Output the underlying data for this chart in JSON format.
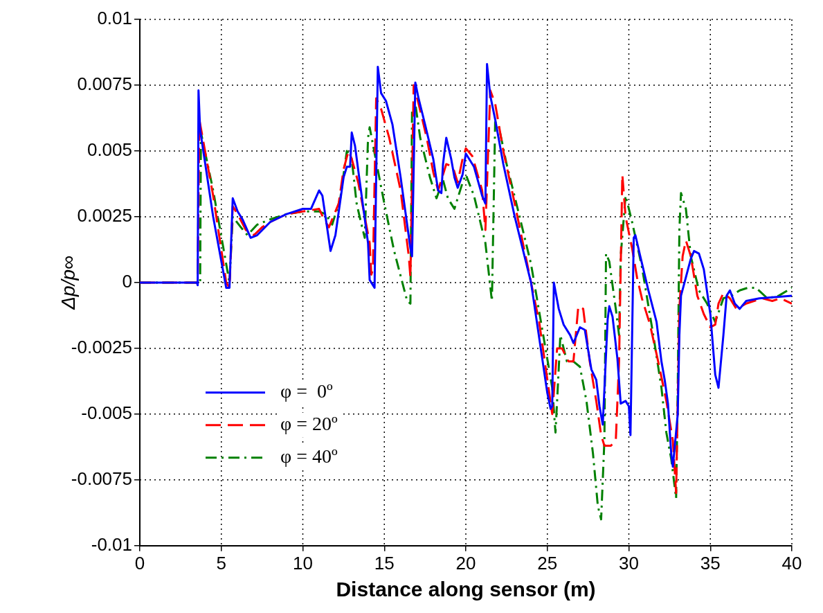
{
  "chart_data": {
    "type": "line",
    "xlabel": "Distance along sensor (m)",
    "ylabel": "Δp/p∞",
    "xlim": [
      0,
      40
    ],
    "xticks": [
      0,
      5,
      10,
      15,
      20,
      25,
      30,
      35,
      40
    ],
    "ylim": [
      -0.01,
      0.01
    ],
    "yticks": [
      -0.01,
      -0.0075,
      -0.005,
      -0.0025,
      0,
      0.0025,
      0.005,
      0.0075,
      0.01
    ],
    "grid": true,
    "legend": "bottom left",
    "marker": "none",
    "series": [
      {
        "name": "φ =  0º",
        "color": "#0000ff",
        "line_style": "solid",
        "x": [
          0,
          3.5,
          3.55,
          3.6,
          3.7,
          4.5,
          5.3,
          5.5,
          5.7,
          6.0,
          6.3,
          6.8,
          7.2,
          8,
          9,
          10,
          10.5,
          11,
          11.2,
          11.7,
          12.0,
          12.5,
          12.7,
          12.9,
          13.0,
          13.2,
          13.5,
          14.0,
          14.1,
          14.4,
          14.6,
          14.8,
          15.1,
          15.5,
          16.0,
          16.6,
          16.7,
          16.9,
          17.1,
          17.5,
          18.0,
          18.3,
          18.5,
          18.6,
          18.8,
          19.1,
          19.3,
          19.5,
          19.8,
          20.0,
          20.5,
          21.0,
          21.2,
          21.3,
          21.5,
          21.8,
          22.3,
          23,
          24,
          25.0,
          25.2,
          25.3,
          25.4,
          25.7,
          26.0,
          26.4,
          26.6,
          27.0,
          27.3,
          27.7,
          28.0,
          28.2,
          28.4,
          28.7,
          28.8,
          29.0,
          29.3,
          29.5,
          29.8,
          30.0,
          30.1,
          30.3,
          30.4,
          30.7,
          31.2,
          31.7,
          32.0,
          32.2,
          32.4,
          32.6,
          32.7,
          33.0,
          33.1,
          33.2,
          33.5,
          33.8,
          34.0,
          34.3,
          34.6,
          35.0,
          35.3,
          35.5,
          35.8,
          36.0,
          36.2,
          36.5,
          36.8,
          37.2,
          38,
          40
        ],
        "values": [
          0,
          0,
          -0.0001,
          0.0073,
          0.0058,
          0.0025,
          -0.0002,
          -0.0002,
          0.0032,
          0.0027,
          0.0024,
          0.0017,
          0.0018,
          0.0023,
          0.0026,
          0.0028,
          0.0028,
          0.0035,
          0.0033,
          0.0012,
          0.0018,
          0.004,
          0.0044,
          0.0044,
          0.0057,
          0.0052,
          0.0038,
          0.0015,
          0.0001,
          -0.0002,
          0.0082,
          0.0072,
          0.0069,
          0.006,
          0.004,
          0.0013,
          0.001,
          0.0076,
          0.007,
          0.006,
          0.0047,
          0.0035,
          0.0034,
          0.0045,
          0.0055,
          0.0047,
          0.004,
          0.0036,
          0.0041,
          0.0049,
          0.0044,
          0.0033,
          0.003,
          0.0083,
          0.0071,
          0.0062,
          0.0045,
          0.0025,
          0,
          -0.0042,
          -0.0048,
          -0.0047,
          0,
          -0.001,
          -0.0016,
          -0.002,
          -0.0023,
          -0.0017,
          -0.0018,
          -0.0033,
          -0.0037,
          -0.0047,
          -0.0054,
          -0.0014,
          -0.0009,
          -0.0013,
          -0.0029,
          -0.0046,
          -0.0045,
          -0.0047,
          -0.0058,
          0.0017,
          0.0018,
          0.001,
          -0.0003,
          -0.0015,
          -0.003,
          -0.0037,
          -0.0046,
          -0.0065,
          -0.007,
          -0.005,
          -0.002,
          -0.0005,
          0.0002,
          0.0009,
          0.0012,
          0.0011,
          0.0005,
          -0.0012,
          -0.0035,
          -0.004,
          -0.002,
          -0.0005,
          -0.0003,
          -0.0008,
          -0.001,
          -0.0007,
          -0.0006,
          -0.0005
        ]
      },
      {
        "name": "φ = 20º",
        "color": "#ff0000",
        "line_style": "dashed",
        "x": [
          0,
          3.55,
          3.65,
          4,
          4.5,
          5.3,
          5.5,
          5.7,
          6.0,
          6.5,
          7,
          7.5,
          8,
          9,
          10,
          11,
          11.3,
          11.6,
          12.2,
          12.5,
          12.8,
          13.0,
          13.4,
          13.8,
          14.1,
          14.2,
          14.3,
          14.5,
          14.8,
          15.3,
          16.0,
          16.5,
          16.6,
          16.8,
          17.1,
          17.6,
          18.0,
          18.3,
          18.8,
          19.2,
          19.5,
          19.8,
          20.0,
          20.4,
          21.0,
          21.2,
          21.5,
          21.8,
          22.3,
          23,
          24.5,
          25.3,
          25.6,
          25.9,
          26.3,
          26.6,
          26.9,
          27.2,
          27.6,
          28.0,
          28.3,
          28.5,
          28.9,
          29.2,
          29.4,
          29.6,
          29.8,
          30.2,
          30.5,
          30.8,
          31.3,
          31.8,
          32.3,
          32.7,
          32.9,
          33.1,
          33.3,
          33.5,
          33.8,
          34.2,
          34.6,
          35.0,
          35.3,
          35.5,
          35.8,
          36.2,
          36.6,
          37.2,
          38.2,
          38.8,
          39.3,
          40
        ],
        "values": [
          0,
          0,
          0.0062,
          0.005,
          0.0033,
          0,
          -0.0002,
          0.0029,
          0.0026,
          0.002,
          0.0018,
          0.0021,
          0.0023,
          0.0026,
          0.0027,
          0.0028,
          0.0024,
          0.0021,
          0.003,
          0.0043,
          0.005,
          0.0047,
          0.0038,
          0.0025,
          0.0015,
          0.0003,
          0.0005,
          0.007,
          0.0066,
          0.0055,
          0.0035,
          0.001,
          0.0002,
          0.0075,
          0.0068,
          0.0055,
          0.0042,
          0.0035,
          0.0045,
          0.0044,
          0.0038,
          0.0047,
          0.0051,
          0.0048,
          0.0035,
          0.002,
          0.0073,
          0.0068,
          0.005,
          0.003,
          -0.0015,
          -0.005,
          -0.0025,
          -0.0025,
          -0.003,
          -0.003,
          -0.0009,
          -0.001,
          -0.003,
          -0.0045,
          -0.0058,
          -0.0062,
          -0.0062,
          -0.006,
          -0.003,
          0.0041,
          0.0025,
          0.0013,
          0.0002,
          -0.0006,
          -0.0016,
          -0.003,
          -0.0045,
          -0.006,
          -0.008,
          -0.001,
          0.001,
          0.0016,
          0.001,
          -0.0005,
          -0.0012,
          -0.0017,
          -0.0016,
          -0.0008,
          -0.0004,
          -0.0006,
          -0.001,
          -0.0008,
          -0.0006,
          -0.0007,
          -0.0006,
          -0.0008
        ]
      },
      {
        "name": "φ = 40º",
        "color": "#008000",
        "line_style": "dashdot",
        "x": [
          0,
          3.7,
          3.75,
          4.5,
          5.5,
          5.7,
          6.2,
          6.6,
          7.2,
          8,
          9,
          10,
          11,
          11.4,
          11.8,
          12.3,
          12.7,
          13.0,
          13.3,
          13.6,
          13.8,
          14.0,
          14.1,
          14.5,
          15,
          15.6,
          16.4,
          16.6,
          16.7,
          16.9,
          17.2,
          17.8,
          18.2,
          18.6,
          18.9,
          19.3,
          19.8,
          20.0,
          20.5,
          21.2,
          21.6,
          21.8,
          22.0,
          22.5,
          23.3,
          24,
          25.3,
          25.5,
          25.6,
          25.8,
          26.2,
          26.6,
          27.0,
          27.4,
          27.8,
          28.1,
          28.3,
          28.5,
          28.6,
          28.8,
          29.2,
          29.4,
          29.5,
          29.8,
          30.2,
          30.8,
          31.5,
          32.0,
          32.3,
          32.6,
          32.9,
          33.0,
          33.1,
          33.2,
          33.5,
          33.8,
          34.3,
          34.8,
          35.3,
          35.8,
          36.3,
          36.8,
          37.3,
          37.8,
          38.5,
          39.2,
          40
        ],
        "values": [
          0,
          0,
          0.0057,
          0.0035,
          0,
          0.0025,
          0.0021,
          0.0018,
          0.0022,
          0.0024,
          0.0026,
          0.0027,
          0.0027,
          0.0026,
          0.0022,
          0.0032,
          0.005,
          0.0047,
          0.003,
          0.0022,
          0.0017,
          0.0055,
          0.0059,
          0.0046,
          0.003,
          0.0012,
          -0.0007,
          -0.0008,
          0.0065,
          0.0068,
          0.0055,
          0.004,
          0.0032,
          0.0039,
          0.0032,
          0.0028,
          0.0038,
          0.0041,
          0.0033,
          0.0015,
          -0.0007,
          0.0061,
          0.006,
          0.0045,
          0.0025,
          0.0007,
          -0.004,
          -0.0057,
          -0.0045,
          -0.002,
          -0.003,
          -0.003,
          -0.0032,
          -0.0045,
          -0.0065,
          -0.0085,
          -0.009,
          -0.006,
          0.0011,
          0.0008,
          -0.001,
          -0.002,
          0.001,
          0.0033,
          0.0023,
          0.0006,
          -0.002,
          -0.004,
          -0.0057,
          -0.0067,
          -0.0082,
          -0.004,
          0.002,
          0.0034,
          0.0028,
          0.001,
          -0.0003,
          -0.0008,
          -0.0015,
          -0.0006,
          -0.0005,
          -0.0003,
          -0.0002,
          -0.0002,
          -0.0006,
          -0.0005,
          -0.0002
        ]
      }
    ]
  }
}
